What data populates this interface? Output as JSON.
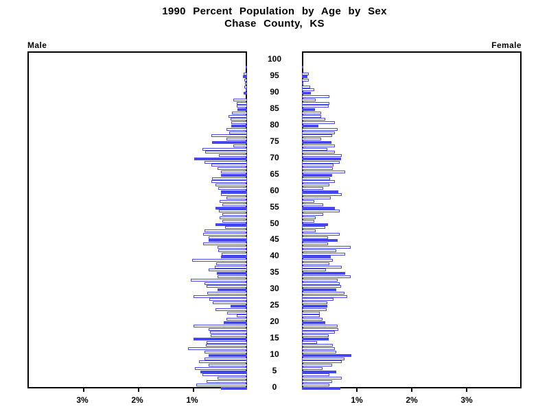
{
  "title": {
    "line1": "1990 Percent Population by Age by Sex",
    "line2": "Chase County, KS"
  },
  "panel_labels": {
    "left": "Male",
    "right": "Female"
  },
  "axis": {
    "x_tick_percents": [
      1,
      2,
      3
    ],
    "x_tick_labels_left": [
      "1%",
      "2%",
      "3%"
    ],
    "x_tick_labels_right": [
      "1%",
      "2%",
      "3%"
    ],
    "x_max_percent": 4,
    "age_min": 0,
    "age_max": 100,
    "age_tick_step": 5,
    "age_tick_labels": [
      "0",
      "5",
      "10",
      "15",
      "20",
      "25",
      "30",
      "35",
      "40",
      "45",
      "50",
      "55",
      "60",
      "65",
      "70",
      "75",
      "80",
      "85",
      "90",
      "95",
      "100"
    ]
  },
  "colors": {
    "bar_blue": "#4646ee",
    "bar_white_fill": "#ffffff",
    "axis_black": "#000000",
    "background": "#ffffff"
  },
  "chart_data": {
    "type": "bar",
    "subtype": "population-pyramid",
    "title": "1990 Percent Population by Age by Sex",
    "subtitle": "Chase County, KS",
    "x_unit": "percent of total population",
    "x_range_each_side": [
      0,
      4
    ],
    "ages_order": "index equals single year of age, 0 through 100",
    "fill_rule": "bars at ages divisible by 5 are solid blue; all other bars are white with blue outline",
    "series": [
      {
        "name": "Male",
        "side": "left",
        "values": [
          0.48,
          0.92,
          0.74,
          0.54,
          0.81,
          0.85,
          0.95,
          0.7,
          0.88,
          0.78,
          0.7,
          0.77,
          1.07,
          0.75,
          0.74,
          0.98,
          0.66,
          0.67,
          0.7,
          0.98,
          0.42,
          0.37,
          0.19,
          0.36,
          0.58,
          0.3,
          0.63,
          0.69,
          0.98,
          0.72,
          0.54,
          0.74,
          0.78,
          1.02,
          0.54,
          0.55,
          0.7,
          0.59,
          0.56,
          1.0,
          0.48,
          0.46,
          0.53,
          0.54,
          0.8,
          0.7,
          0.7,
          0.8,
          0.77,
          0.4,
          0.57,
          0.45,
          0.5,
          0.45,
          0.51,
          0.57,
          0.45,
          0.5,
          0.38,
          0.48,
          0.48,
          0.52,
          0.57,
          0.65,
          0.64,
          0.48,
          0.48,
          0.54,
          0.65,
          0.78,
          0.96,
          0.51,
          0.76,
          0.81,
          0.25,
          0.64,
          0.38,
          0.65,
          0.33,
          0.38,
          0.29,
          0.29,
          0.3,
          0.34,
          0.28,
          0.18,
          0.19,
          0.19,
          0.25,
          0.0,
          0.06,
          0.03,
          0.05,
          0.04,
          0.05,
          0.08,
          0.06,
          0.0,
          0.03,
          0.0,
          0.0
        ]
      },
      {
        "name": "Female",
        "side": "right",
        "values": [
          0.7,
          0.5,
          0.55,
          0.72,
          0.5,
          0.63,
          0.37,
          0.55,
          0.72,
          0.78,
          0.9,
          0.62,
          0.6,
          0.56,
          0.27,
          0.49,
          0.49,
          0.6,
          0.66,
          0.65,
          0.43,
          0.37,
          0.33,
          0.33,
          0.45,
          0.46,
          0.46,
          0.58,
          0.83,
          0.78,
          0.63,
          0.71,
          0.69,
          0.65,
          0.89,
          0.79,
          0.44,
          0.72,
          0.5,
          0.56,
          0.52,
          0.79,
          0.62,
          0.89,
          0.48,
          0.65,
          0.48,
          0.69,
          0.25,
          0.43,
          0.47,
          0.23,
          0.25,
          0.39,
          0.69,
          0.6,
          0.39,
          0.23,
          0.52,
          0.72,
          0.66,
          0.39,
          0.5,
          0.6,
          0.51,
          0.55,
          0.79,
          0.56,
          0.58,
          0.69,
          0.71,
          0.73,
          0.6,
          0.46,
          0.6,
          0.54,
          0.35,
          0.55,
          0.6,
          0.65,
          0.3,
          0.6,
          0.43,
          0.35,
          0.35,
          0.24,
          0.49,
          0.5,
          0.25,
          0.5,
          0.16,
          0.23,
          0.15,
          0.03,
          0.13,
          0.1,
          0.13,
          0.0,
          0.03,
          0.0,
          0.0
        ]
      }
    ]
  }
}
